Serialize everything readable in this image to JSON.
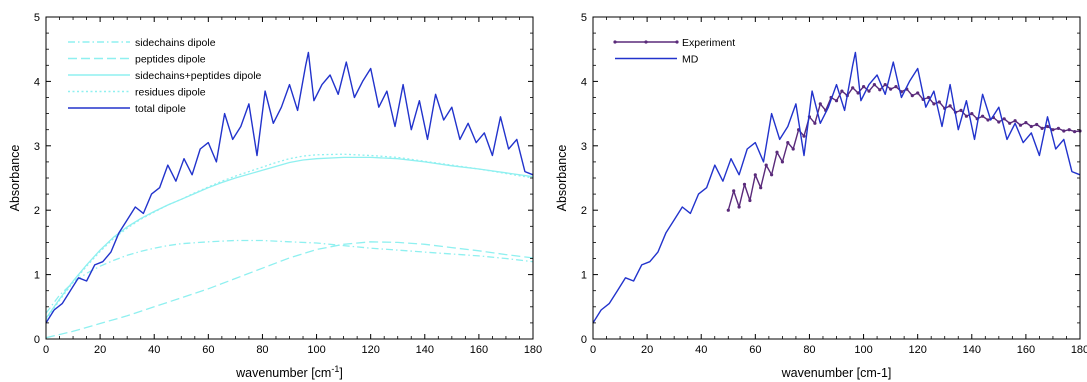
{
  "chart_data": [
    {
      "type": "line",
      "title": "",
      "xlabel": "wavenumber [cm",
      "xlabel_sup": "-1",
      "xlabel_end": "]",
      "ylabel": "Absorbance",
      "xlim": [
        0,
        180
      ],
      "ylim": [
        0,
        5
      ],
      "xticks": [
        "0",
        "20",
        "40",
        "60",
        "80",
        "100",
        "120",
        "140",
        "160",
        "180"
      ],
      "yticks": [
        "0",
        "1",
        "2",
        "3",
        "4",
        "5"
      ],
      "grid": false,
      "legend_position": "top-left",
      "series": [
        {
          "name": "sidechains dipole",
          "color": "#8ff0f0",
          "dash": "dashdot",
          "x": [
            0,
            5,
            10,
            15,
            20,
            25,
            30,
            35,
            40,
            45,
            50,
            60,
            70,
            80,
            90,
            100,
            110,
            120,
            130,
            140,
            150,
            160,
            170,
            180
          ],
          "y": [
            0.4,
            0.68,
            0.88,
            1.02,
            1.13,
            1.22,
            1.3,
            1.36,
            1.41,
            1.45,
            1.48,
            1.51,
            1.53,
            1.53,
            1.51,
            1.49,
            1.45,
            1.41,
            1.38,
            1.35,
            1.32,
            1.29,
            1.25,
            1.2
          ]
        },
        {
          "name": "peptides dipole",
          "color": "#8ff0f0",
          "dash": "longdash",
          "x": [
            0,
            10,
            20,
            30,
            40,
            50,
            60,
            70,
            80,
            90,
            100,
            110,
            120,
            130,
            140,
            150,
            160,
            170,
            180
          ],
          "y": [
            0.02,
            0.12,
            0.24,
            0.36,
            0.5,
            0.64,
            0.78,
            0.94,
            1.1,
            1.26,
            1.39,
            1.47,
            1.51,
            1.5,
            1.47,
            1.42,
            1.37,
            1.31,
            1.26
          ]
        },
        {
          "name": "sidechains+peptides dipole",
          "color": "#8ff0f0",
          "dash": "solid",
          "x": [
            0,
            5,
            10,
            15,
            20,
            25,
            30,
            35,
            40,
            45,
            50,
            55,
            60,
            65,
            70,
            75,
            80,
            85,
            90,
            95,
            100,
            110,
            120,
            130,
            140,
            150,
            160,
            170,
            180
          ],
          "y": [
            0.32,
            0.62,
            0.9,
            1.15,
            1.38,
            1.58,
            1.74,
            1.87,
            1.98,
            2.08,
            2.17,
            2.26,
            2.35,
            2.43,
            2.5,
            2.56,
            2.62,
            2.68,
            2.74,
            2.78,
            2.8,
            2.82,
            2.82,
            2.8,
            2.75,
            2.69,
            2.64,
            2.58,
            2.52
          ]
        },
        {
          "name": "residues dipole",
          "color": "#8ff0f0",
          "dash": "dotted",
          "x": [
            0,
            5,
            10,
            15,
            20,
            25,
            30,
            35,
            40,
            45,
            50,
            55,
            60,
            65,
            70,
            75,
            80,
            85,
            90,
            95,
            100,
            110,
            120,
            130,
            140,
            150,
            160,
            170,
            180
          ],
          "y": [
            0.3,
            0.6,
            0.88,
            1.13,
            1.36,
            1.56,
            1.72,
            1.86,
            1.97,
            2.08,
            2.17,
            2.27,
            2.36,
            2.45,
            2.53,
            2.6,
            2.67,
            2.74,
            2.8,
            2.84,
            2.86,
            2.87,
            2.85,
            2.82,
            2.76,
            2.7,
            2.64,
            2.57,
            2.5
          ]
        },
        {
          "name": "total dipole",
          "color": "#2233cc",
          "dash": "solid",
          "x": [
            0,
            3,
            6,
            9,
            12,
            15,
            18,
            21,
            24,
            27,
            30,
            33,
            36,
            39,
            42,
            45,
            48,
            51,
            54,
            57,
            60,
            63,
            66,
            69,
            72,
            75,
            78,
            81,
            84,
            87,
            90,
            93,
            96,
            97,
            99,
            102,
            105,
            108,
            111,
            114,
            117,
            120,
            123,
            126,
            129,
            132,
            135,
            138,
            141,
            144,
            147,
            150,
            153,
            156,
            159,
            162,
            165,
            168,
            171,
            174,
            177,
            180
          ],
          "y": [
            0.25,
            0.45,
            0.55,
            0.75,
            0.95,
            0.9,
            1.15,
            1.2,
            1.35,
            1.65,
            1.85,
            2.05,
            1.95,
            2.25,
            2.35,
            2.7,
            2.45,
            2.8,
            2.55,
            2.95,
            3.05,
            2.75,
            3.5,
            3.1,
            3.3,
            3.65,
            2.85,
            3.85,
            3.35,
            3.6,
            3.95,
            3.55,
            4.25,
            4.45,
            3.7,
            3.95,
            4.1,
            3.8,
            4.3,
            3.75,
            4.0,
            4.2,
            3.6,
            3.85,
            3.3,
            3.95,
            3.25,
            3.7,
            3.1,
            3.8,
            3.4,
            3.6,
            3.1,
            3.35,
            3.05,
            3.2,
            2.85,
            3.45,
            2.95,
            3.1,
            2.6,
            2.55
          ]
        }
      ],
      "legend": {
        "items": [
          "sidechains dipole",
          "peptides dipole",
          "sidechains+peptides dipole",
          "residues dipole",
          "total dipole"
        ]
      }
    },
    {
      "type": "line",
      "title": "",
      "xlabel": "wavenumber [cm-1]",
      "ylabel": "Absorbance",
      "xlim": [
        0,
        180
      ],
      "ylim": [
        0,
        5
      ],
      "xticks": [
        "0",
        "20",
        "40",
        "60",
        "80",
        "100",
        "120",
        "140",
        "160",
        "180"
      ],
      "yticks": [
        "0",
        "1",
        "2",
        "3",
        "4",
        "5"
      ],
      "grid": false,
      "legend_position": "top-left",
      "series": [
        {
          "name": "Experiment",
          "color": "#5a2a7a",
          "dash": "solid",
          "markers": true,
          "x": [
            50,
            52,
            54,
            56,
            58,
            60,
            62,
            64,
            66,
            68,
            70,
            72,
            74,
            76,
            78,
            80,
            82,
            84,
            86,
            88,
            90,
            92,
            94,
            96,
            98,
            100,
            102,
            104,
            106,
            108,
            110,
            112,
            114,
            116,
            118,
            120,
            122,
            124,
            126,
            128,
            130,
            132,
            134,
            136,
            138,
            140,
            142,
            144,
            146,
            148,
            150,
            152,
            154,
            156,
            158,
            160,
            162,
            164,
            166,
            168,
            170,
            172,
            174,
            176,
            178,
            180
          ],
          "y": [
            2.0,
            2.3,
            2.05,
            2.4,
            2.15,
            2.55,
            2.35,
            2.7,
            2.55,
            2.9,
            2.75,
            3.05,
            2.95,
            3.25,
            3.15,
            3.45,
            3.35,
            3.65,
            3.55,
            3.75,
            3.7,
            3.85,
            3.78,
            3.9,
            3.82,
            3.92,
            3.85,
            3.95,
            3.87,
            3.95,
            3.88,
            3.92,
            3.84,
            3.88,
            3.78,
            3.82,
            3.72,
            3.75,
            3.65,
            3.68,
            3.58,
            3.62,
            3.52,
            3.55,
            3.46,
            3.5,
            3.42,
            3.46,
            3.4,
            3.44,
            3.37,
            3.42,
            3.35,
            3.39,
            3.32,
            3.36,
            3.3,
            3.33,
            3.27,
            3.3,
            3.25,
            3.27,
            3.23,
            3.25,
            3.22,
            3.23
          ]
        },
        {
          "name": "MD",
          "color": "#2233cc",
          "dash": "solid",
          "markers": false,
          "x": [
            0,
            3,
            6,
            9,
            12,
            15,
            18,
            21,
            24,
            27,
            30,
            33,
            36,
            39,
            42,
            45,
            48,
            51,
            54,
            57,
            60,
            63,
            66,
            69,
            72,
            75,
            78,
            81,
            84,
            87,
            90,
            93,
            96,
            97,
            99,
            102,
            105,
            108,
            111,
            114,
            117,
            120,
            123,
            126,
            129,
            132,
            135,
            138,
            141,
            144,
            147,
            150,
            153,
            156,
            159,
            162,
            165,
            168,
            171,
            174,
            177,
            180
          ],
          "y": [
            0.25,
            0.45,
            0.55,
            0.75,
            0.95,
            0.9,
            1.15,
            1.2,
            1.35,
            1.65,
            1.85,
            2.05,
            1.95,
            2.25,
            2.35,
            2.7,
            2.45,
            2.8,
            2.55,
            2.95,
            3.05,
            2.75,
            3.5,
            3.1,
            3.3,
            3.65,
            2.85,
            3.85,
            3.35,
            3.6,
            3.95,
            3.55,
            4.25,
            4.45,
            3.7,
            3.95,
            4.1,
            3.8,
            4.3,
            3.75,
            4.0,
            4.2,
            3.6,
            3.85,
            3.3,
            3.95,
            3.25,
            3.7,
            3.1,
            3.8,
            3.4,
            3.6,
            3.1,
            3.35,
            3.05,
            3.2,
            2.85,
            3.45,
            2.95,
            3.1,
            2.6,
            2.55
          ]
        }
      ],
      "legend": {
        "items": [
          "Experiment",
          "MD"
        ]
      }
    }
  ]
}
